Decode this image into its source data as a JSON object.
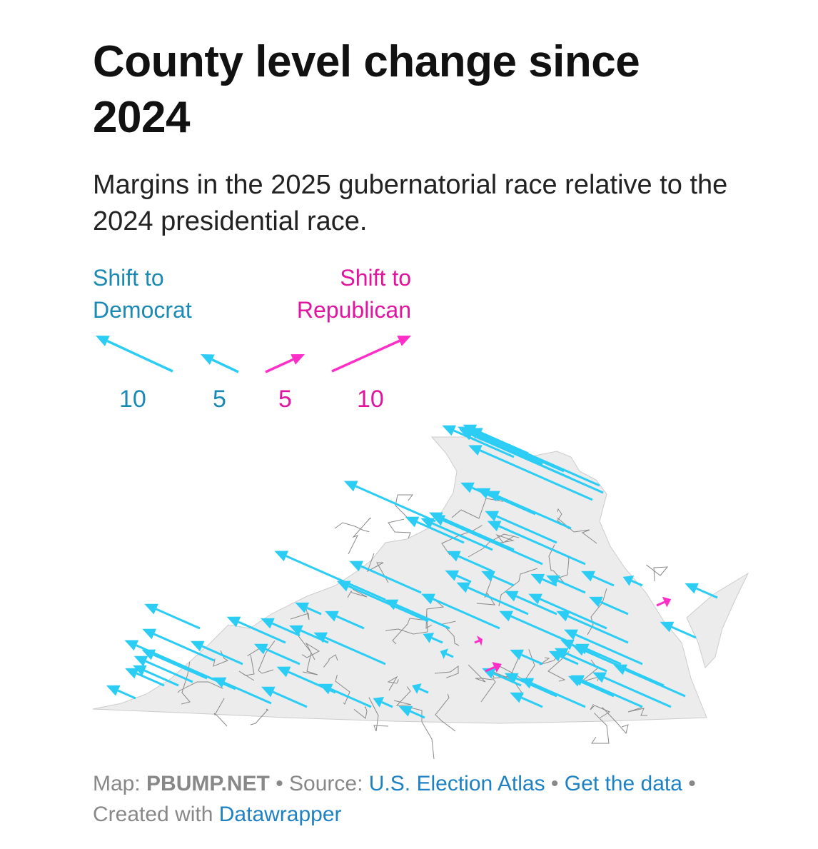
{
  "title": "County level change since 2024",
  "subtitle": "Margins in the 2025 gubernatorial race relative to the 2024 presidential race.",
  "legend": {
    "dem_label_1": "Shift to",
    "dem_label_2": "Democrat",
    "rep_label_1": "Shift to",
    "rep_label_2": "Republican",
    "scale": [
      "10",
      "5",
      "5",
      "10"
    ]
  },
  "colors": {
    "dem": "#2ccdf5",
    "rep": "#ff2ec7",
    "land": "#ececec",
    "border": "#777777"
  },
  "footer": {
    "map_prefix": "Map:",
    "map_author": "PBUMP.NET",
    "source_prefix": "• Source:",
    "source_link": "U.S. Election Atlas",
    "sep": "•",
    "data_link": "Get the data",
    "sep2": "•",
    "created_prefix": "Created with",
    "created_link": "Datawrapper"
  }
}
